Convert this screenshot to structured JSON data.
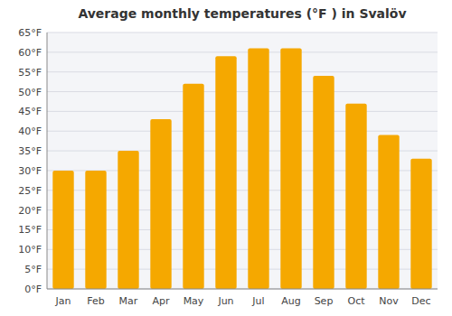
{
  "chart_data": {
    "type": "bar",
    "title": "Average monthly temperatures (°F ) in Svalöv",
    "categories": [
      "Jan",
      "Feb",
      "Mar",
      "Apr",
      "May",
      "Jun",
      "Jul",
      "Aug",
      "Sep",
      "Oct",
      "Nov",
      "Dec"
    ],
    "values": [
      30,
      30,
      35,
      43,
      52,
      59,
      61,
      61,
      54,
      47,
      39,
      33
    ],
    "color": "#F5A800",
    "ylim": [
      0,
      65
    ],
    "yticks": [
      {
        "value": 0,
        "label": "0°F"
      },
      {
        "value": 5,
        "label": "5°F"
      },
      {
        "value": 10,
        "label": "10°F"
      },
      {
        "value": 15,
        "label": "15°F"
      },
      {
        "value": 20,
        "label": "20°F"
      },
      {
        "value": 25,
        "label": "25°F"
      },
      {
        "value": 30,
        "label": "30°F"
      },
      {
        "value": 35,
        "label": "35°F"
      },
      {
        "value": 40,
        "label": "40°F"
      },
      {
        "value": 45,
        "label": "45°F"
      },
      {
        "value": 50,
        "label": "50°F"
      },
      {
        "value": 55,
        "label": "55°F"
      },
      {
        "value": 60,
        "label": "60°F"
      },
      {
        "value": 65,
        "label": "65°F"
      }
    ],
    "grid": true
  }
}
